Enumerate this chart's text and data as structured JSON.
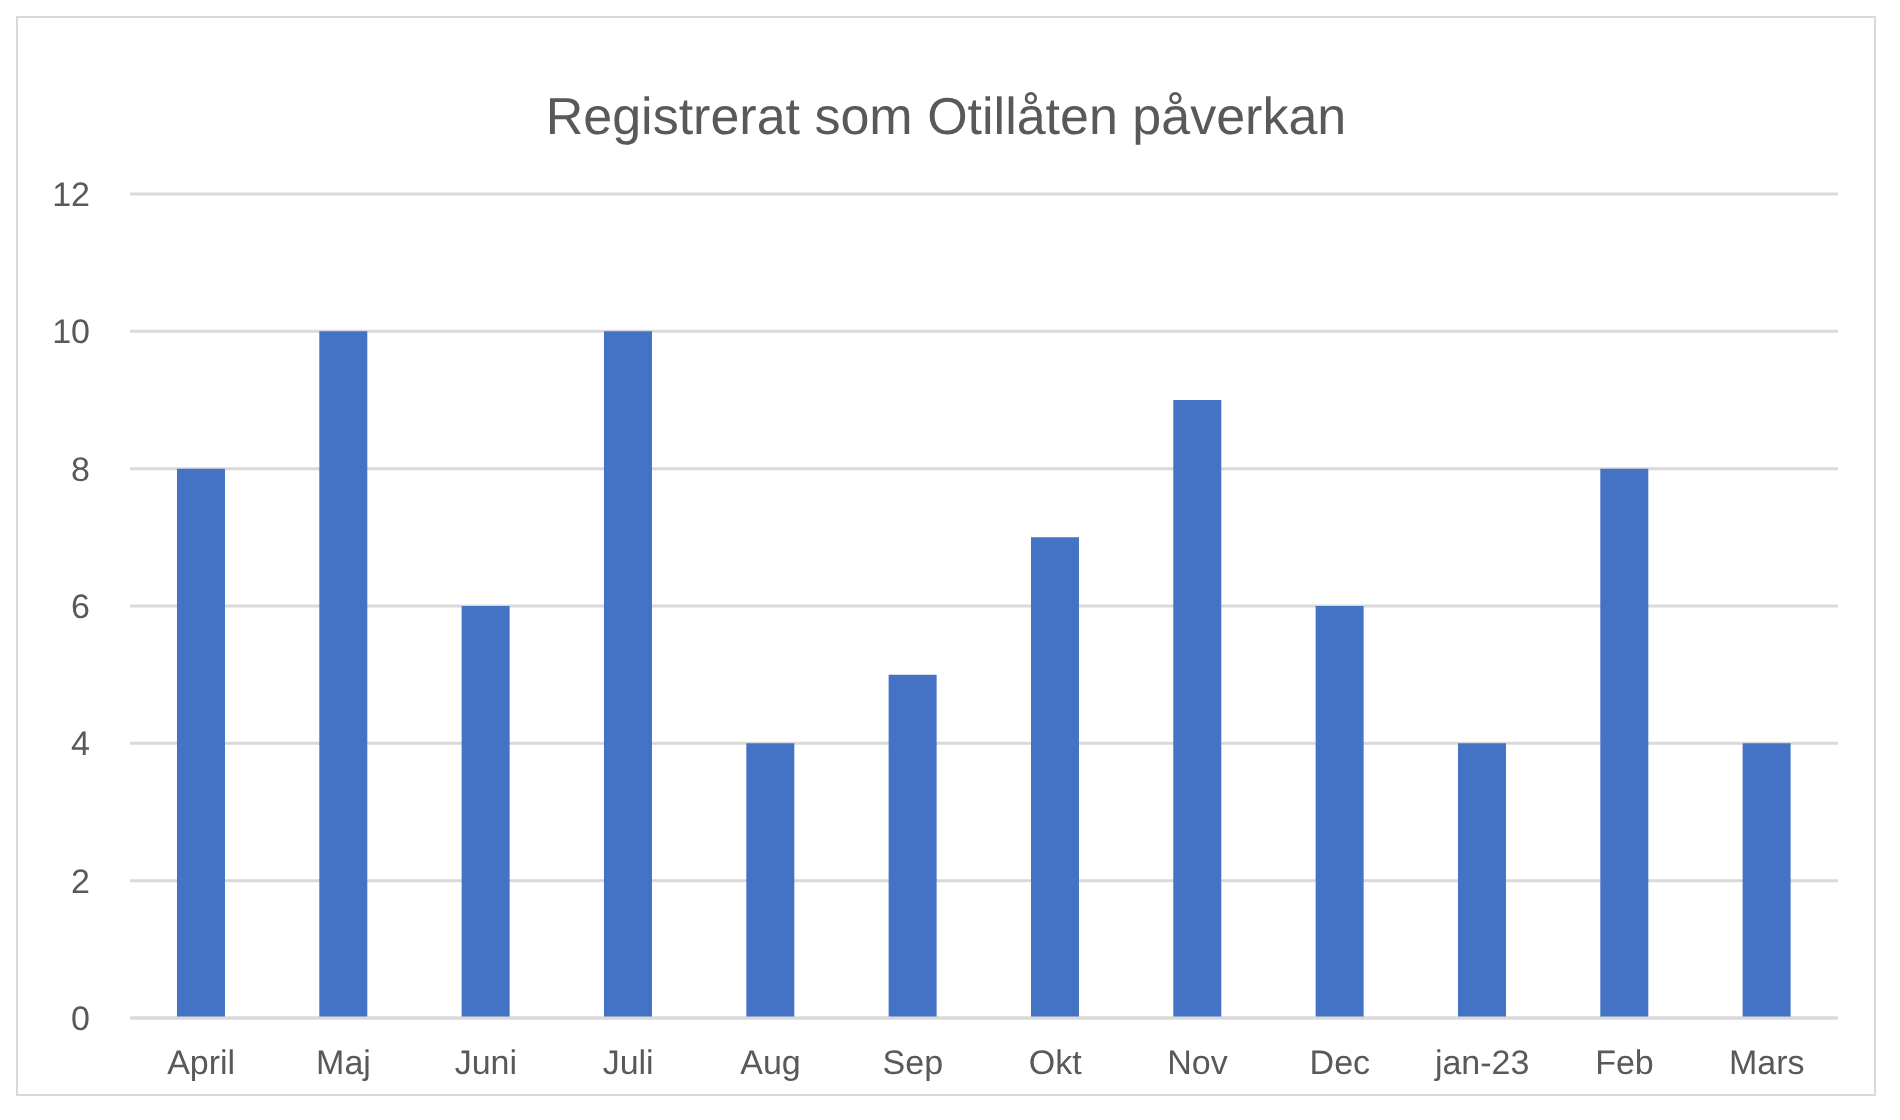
{
  "chart_data": {
    "type": "bar",
    "title": "Registrerat som Otillåten påverkan",
    "categories": [
      "April",
      "Maj",
      "Juni",
      "Juli",
      "Aug",
      "Sep",
      "Okt",
      "Nov",
      "Dec",
      "jan-23",
      "Feb",
      "Mars"
    ],
    "values": [
      8,
      10,
      6,
      10,
      4,
      5,
      7,
      9,
      6,
      4,
      8,
      4
    ],
    "color": "#4472c4",
    "ylim": [
      0,
      12
    ],
    "yticks": [
      0,
      2,
      4,
      6,
      8,
      10,
      12
    ],
    "grid": "y",
    "legend": false
  }
}
